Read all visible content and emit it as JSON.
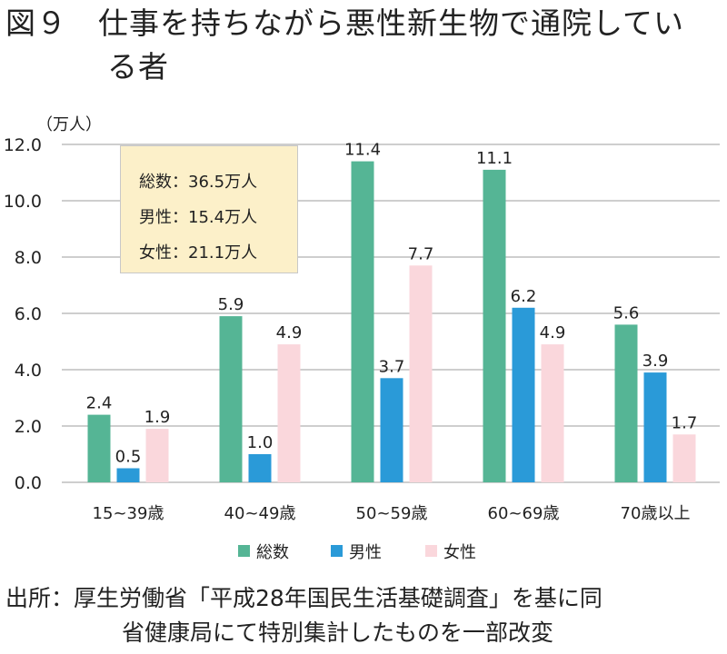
{
  "title": {
    "line1": "図９　仕事を持ちながら悪性新生物で通院してい",
    "line2": "る者"
  },
  "chart_data": {
    "type": "bar",
    "unit_label": "（万人）",
    "categories": [
      "15~39歳",
      "40~49歳",
      "50~59歳",
      "60~69歳",
      "70歳以上"
    ],
    "series": [
      {
        "name": "総数",
        "color": "#55b595",
        "values": [
          2.4,
          5.9,
          11.4,
          11.1,
          5.6
        ]
      },
      {
        "name": "男性",
        "color": "#2a9ad8",
        "values": [
          0.5,
          1.0,
          3.7,
          6.2,
          3.9
        ]
      },
      {
        "name": "女性",
        "color": "#fad7dc",
        "values": [
          1.9,
          4.9,
          7.7,
          4.9,
          1.7
        ]
      }
    ],
    "ylim": [
      0,
      12
    ],
    "yticks": [
      "0.0",
      "2.0",
      "4.0",
      "6.0",
      "8.0",
      "10.0",
      "12.0"
    ],
    "grid": true,
    "legend_position": "bottom",
    "annotation": [
      "総数：36.5万人",
      "男性：15.4万人",
      "女性：21.1万人"
    ]
  },
  "source": {
    "line1": "出所：厚生労働省「平成28年国民生活基礎調査」を基に同",
    "line2": "省健康局にて特別集計したものを一部改変"
  }
}
